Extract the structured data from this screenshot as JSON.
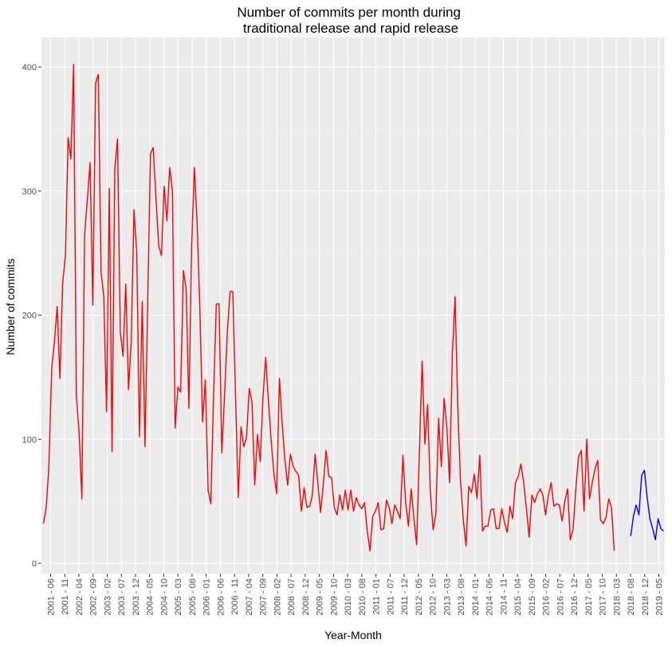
{
  "chart_data": {
    "type": "line",
    "title": "Number of commits per month during\ntraditional release and rapid release",
    "xlabel": "Year-Month",
    "ylabel": "Number of commits",
    "ylim": [
      0,
      420
    ],
    "y_ticks": [
      0,
      100,
      200,
      300,
      400
    ],
    "x_ticks": [
      "2001 - 06",
      "2001 - 11",
      "2002 - 04",
      "2002 - 09",
      "2003 - 02",
      "2003 - 07",
      "2003 - 12",
      "2004 - 05",
      "2004 - 10",
      "2005 - 03",
      "2005 - 08",
      "2006 - 01",
      "2006 - 06",
      "2006 - 11",
      "2007 - 04",
      "2007 - 09",
      "2008 - 02",
      "2008 - 07",
      "2008 - 12",
      "2009 - 05",
      "2009 - 10",
      "2010 - 03",
      "2010 - 08",
      "2011 - 01",
      "2011 - 07",
      "2011 - 12",
      "2012 - 05",
      "2012 - 10",
      "2013 - 03",
      "2013 - 08",
      "2014 - 01",
      "2014 - 06",
      "2014 - 11",
      "2015 - 04",
      "2015 - 09",
      "2016 - 02",
      "2016 - 07",
      "2016 - 12",
      "2017 - 05",
      "2017 - 10",
      "2018 - 03",
      "2018 - 08",
      "2018 - 12",
      "2019 - 05"
    ],
    "grid": true,
    "legend": "none",
    "series": [
      {
        "color": "#FF0000",
        "start_index": 0,
        "values": [
          32,
          45,
          78,
          157,
          178,
          207,
          149,
          225,
          248,
          343,
          326,
          402,
          135,
          105,
          52,
          265,
          293,
          323,
          208,
          387,
          394,
          235,
          215,
          122,
          302,
          90,
          318,
          342,
          187,
          167,
          225,
          140,
          180,
          285,
          250,
          102,
          211,
          94,
          210,
          330,
          335,
          295,
          256,
          248,
          304,
          276,
          319,
          300,
          109,
          142,
          138,
          236,
          221,
          125,
          255,
          319,
          274,
          205,
          114,
          148,
          59,
          48,
          135,
          209,
          209,
          89,
          135,
          186,
          219,
          219,
          135,
          53,
          110,
          94,
          101,
          141,
          130,
          63,
          104,
          82,
          134,
          166,
          130,
          98,
          72,
          56,
          149,
          112,
          83,
          63,
          88,
          78,
          74,
          71,
          42,
          61,
          45,
          46,
          55,
          88,
          64,
          41,
          64,
          91,
          70,
          69,
          45,
          39,
          55,
          43,
          59,
          43,
          59,
          42,
          53,
          47,
          44,
          49,
          26,
          10,
          38,
          42,
          49,
          27,
          28,
          51,
          45,
          32,
          47,
          42,
          36,
          87,
          49,
          30,
          60,
          36,
          15,
          90,
          163,
          96,
          128,
          57,
          27,
          40,
          117,
          78,
          133,
          110,
          65,
          168,
          215,
          125,
          66,
          35,
          14,
          62,
          57,
          72,
          52,
          87,
          26,
          30,
          30,
          43,
          44,
          28,
          28,
          44,
          33,
          25,
          46,
          36,
          65,
          70,
          80,
          65,
          44,
          21,
          55,
          49,
          56,
          60,
          55,
          39,
          55,
          65,
          46,
          48,
          47,
          34,
          50,
          60,
          19,
          27,
          60,
          86,
          91,
          42,
          100,
          52,
          65,
          76,
          83,
          35,
          32,
          37,
          52,
          45,
          10
        ]
      },
      {
        "color": "#0000FF",
        "start_index": 214,
        "values": [
          22,
          38,
          47,
          39,
          71,
          75,
          53,
          36,
          28,
          19,
          36,
          28,
          26
        ]
      }
    ]
  }
}
